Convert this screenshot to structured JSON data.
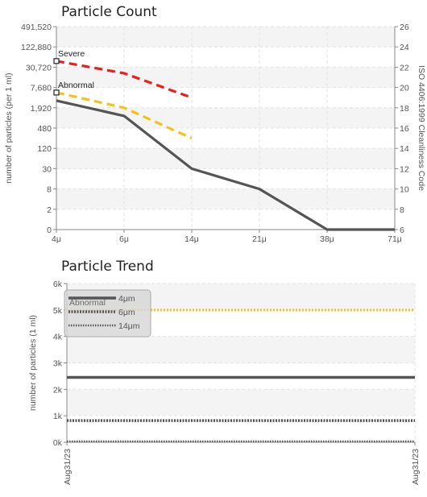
{
  "chart_data": [
    {
      "type": "line",
      "title": "Particle Count",
      "categories": [
        "4μ",
        "6μ",
        "14μ",
        "21μ",
        "38μ",
        "71μ"
      ],
      "ylabel": "number of particles (per 1 ml)",
      "y_ticks": [
        "0",
        "2",
        "8",
        "30",
        "120",
        "480",
        "1,920",
        "7,680",
        "30,720",
        "122,880",
        "491,520"
      ],
      "y2label": "ISO 4406:1999 Cleanliness Code",
      "y2_ticks": [
        "6",
        "8",
        "10",
        "12",
        "14",
        "16",
        "18",
        "20",
        "22",
        "24",
        "26"
      ],
      "ylim_code": [
        6,
        26
      ],
      "grid": true,
      "series": [
        {
          "name": "Severe",
          "values_code": [
            22.6,
            21.4,
            19.0
          ],
          "color": "#e8211b",
          "style": "dashed"
        },
        {
          "name": "Abnormal",
          "values_code": [
            19.5,
            18.0,
            15.0
          ],
          "color": "#f5c21a",
          "style": "dashed"
        },
        {
          "name": "",
          "values_code": [
            18.7,
            17.2,
            12.0,
            10.0,
            6.0,
            6.0
          ],
          "color": "#555555",
          "style": "solid"
        }
      ]
    },
    {
      "type": "line",
      "title": "Particle Trend",
      "x": [
        "Aug31/23",
        "Aug31/23"
      ],
      "ylabel": "number of particles (1 ml)",
      "y_ticks": [
        "0k",
        "1k",
        "2k",
        "3k",
        "4k",
        "5k",
        "6k"
      ],
      "ylim": [
        0,
        6000
      ],
      "grid": true,
      "legend": {
        "placement": "top-left",
        "overlay_text": "Abnormal"
      },
      "series": [
        {
          "name": "Abnormal",
          "values": [
            5000,
            5000
          ],
          "color": "#f5c21a",
          "style": "dotted",
          "in_legend": false
        },
        {
          "name": "4μm",
          "values": [
            2450,
            2450
          ],
          "color": "#555555",
          "style": "solid"
        },
        {
          "name": "6μm",
          "values": [
            820,
            820
          ],
          "color": "#555555",
          "style": "dotted-heavy"
        },
        {
          "name": "14μm",
          "values": [
            30,
            30
          ],
          "color": "#555555",
          "style": "dotted-light"
        }
      ]
    }
  ]
}
